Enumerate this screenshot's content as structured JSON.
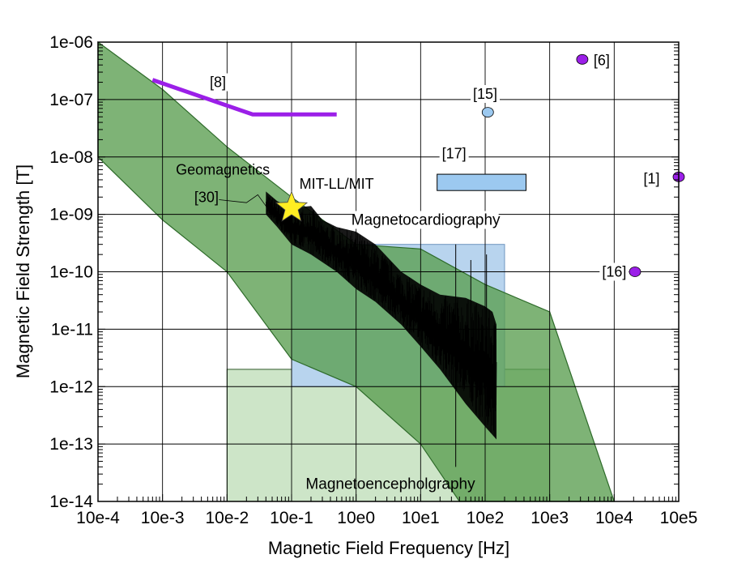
{
  "chart_data": {
    "type": "scatter",
    "xscale": "log",
    "yscale": "log",
    "xlabel": "Magnetic Field Frequency [Hz]",
    "ylabel": "Magnetic Field Strength [T]",
    "xlim": [
      0.0001,
      100000
    ],
    "ylim": [
      1e-14,
      1e-06
    ],
    "grid": true,
    "x_ticks": [
      {
        "value": 0.0001,
        "label": "10e-4"
      },
      {
        "value": 0.001,
        "label": "10e-3"
      },
      {
        "value": 0.01,
        "label": "10e-2"
      },
      {
        "value": 0.1,
        "label": "10e-1"
      },
      {
        "value": 1,
        "label": "10e0"
      },
      {
        "value": 10,
        "label": "10e1"
      },
      {
        "value": 100,
        "label": "10e2"
      },
      {
        "value": 1000,
        "label": "10e3"
      },
      {
        "value": 10000,
        "label": "10e4"
      },
      {
        "value": 100000,
        "label": "10e5"
      }
    ],
    "y_ticks": [
      {
        "value": 1e-14,
        "label": "1e-14"
      },
      {
        "value": 1e-13,
        "label": "1e-13"
      },
      {
        "value": 1e-12,
        "label": "1e-12"
      },
      {
        "value": 1e-11,
        "label": "1e-11"
      },
      {
        "value": 1e-10,
        "label": "1e-10"
      },
      {
        "value": 1e-09,
        "label": "1e-09"
      },
      {
        "value": 1e-08,
        "label": "1e-08"
      },
      {
        "value": 1e-07,
        "label": "1e-07"
      },
      {
        "value": 1e-06,
        "label": "1e-06"
      }
    ],
    "colors": {
      "geomagnetics_fill": "#5a9e50",
      "geomagnetics_stroke": "#2e6b2a",
      "cardio_fill": "#b8d4ee",
      "meg_fill": "#cde5c8",
      "purple": "#9b1fe8",
      "light_blue": "#9cc9f0",
      "star": "#ffee22"
    },
    "regions": [
      {
        "name": "Magnetoencepholgraphy",
        "label": "Magnetoencepholgraphy",
        "x": [
          0.01,
          1000
        ],
        "y": [
          1e-14,
          2e-12
        ],
        "label_at": {
          "x": 3.4,
          "y": 2e-14
        }
      },
      {
        "name": "Magnetocardiography",
        "label": "Magnetocardiography",
        "x": [
          0.1,
          200
        ],
        "y": [
          1e-12,
          3e-10
        ],
        "label_at": {
          "x": 12,
          "y": 8e-10
        }
      },
      {
        "name": "Geomagnetics",
        "label": "Geomagnetics",
        "polygon": [
          [
            0.0001,
            1e-06
          ],
          [
            0.001,
            1.5e-07
          ],
          [
            0.01,
            1.5e-08
          ],
          [
            0.1,
            2e-09
          ],
          [
            1,
            3e-10
          ],
          [
            10,
            2.5e-10
          ],
          [
            100,
            6e-11
          ],
          [
            1000,
            2e-11
          ],
          [
            10000,
            1e-14
          ],
          [
            40,
            1e-14
          ],
          [
            10,
            1e-13
          ],
          [
            1,
            1e-12
          ],
          [
            0.1,
            3e-12
          ],
          [
            0.01,
            1e-10
          ],
          [
            0.001,
            8e-10
          ],
          [
            0.0001,
            1e-08
          ]
        ],
        "label_at": {
          "x": 0.0086,
          "y": 6e-09
        }
      }
    ],
    "series": [
      {
        "name": "[8]",
        "type": "line",
        "points": [
          [
            0.0007,
            2.2e-07
          ],
          [
            0.025,
            5.5e-08
          ],
          [
            0.5,
            5.5e-08
          ]
        ],
        "label": "[8]",
        "label_at": {
          "x": 0.0072,
          "y": 2e-07
        }
      },
      {
        "name": "[15]",
        "type": "point",
        "points": [
          [
            110,
            6e-08
          ]
        ],
        "label": "[15]",
        "label_at": {
          "x": 100,
          "y": 1.25e-07
        }
      },
      {
        "name": "[17]",
        "type": "range",
        "x": [
          18,
          430
        ],
        "y": [
          2.6e-09,
          5e-09
        ],
        "label": "[17]",
        "label_at": {
          "x": 33,
          "y": 1.15e-08
        }
      },
      {
        "name": "[6]",
        "type": "point",
        "points": [
          [
            3200,
            5e-07
          ]
        ],
        "label": "[6]",
        "label_at": {
          "x": 6400,
          "y": 4.8e-07
        }
      },
      {
        "name": "[1]",
        "type": "point",
        "points": [
          [
            100000,
            4.5e-09
          ]
        ],
        "label": "[1]",
        "label_at": {
          "x": 38000,
          "y": 4.2e-09
        }
      },
      {
        "name": "[16]",
        "type": "point",
        "points": [
          [
            21000,
            1e-10
          ]
        ],
        "label": "[16]",
        "label_at": {
          "x": 10000,
          "y": 1e-10
        }
      },
      {
        "name": "MIT-LL/MIT",
        "type": "star",
        "points": [
          [
            0.1,
            1.3e-09
          ]
        ],
        "label": "MIT-LL/MIT",
        "label_at": {
          "x": 0.5,
          "y": 3.4e-09
        }
      },
      {
        "name": "[30]",
        "type": "noise-spectrum",
        "label": "[30]",
        "label_at": {
          "x": 0.0048,
          "y": 2e-09
        },
        "envelope_upper": [
          [
            0.04,
            2.5e-09
          ],
          [
            0.06,
            1.7e-09
          ],
          [
            0.1,
            1.3e-09
          ],
          [
            0.2,
            1.4e-09
          ],
          [
            0.3,
            8e-10
          ],
          [
            0.5,
            6e-10
          ],
          [
            1,
            5e-10
          ],
          [
            2,
            3e-10
          ],
          [
            5,
            1e-10
          ],
          [
            10,
            6e-11
          ],
          [
            20,
            4e-11
          ],
          [
            50,
            3.5e-11
          ],
          [
            100,
            2.5e-11
          ],
          [
            130,
            2e-11
          ],
          [
            150,
            1.2e-11
          ]
        ],
        "envelope_lower": [
          [
            0.04,
            1e-09
          ],
          [
            0.06,
            6e-10
          ],
          [
            0.1,
            3e-10
          ],
          [
            0.2,
            2e-10
          ],
          [
            0.5,
            1e-10
          ],
          [
            1,
            5e-11
          ],
          [
            2,
            3e-11
          ],
          [
            5,
            1.2e-11
          ],
          [
            10,
            5e-12
          ],
          [
            20,
            2e-12
          ],
          [
            50,
            5e-13
          ],
          [
            100,
            2e-13
          ],
          [
            150,
            1.2e-13
          ]
        ]
      }
    ],
    "annotations": [
      {
        "text": "Geomagnetics",
        "at": {
          "x": 0.0086,
          "y": 6e-09
        }
      },
      {
        "text": "[30]",
        "at": {
          "x": 0.0048,
          "y": 2e-09
        }
      }
    ]
  }
}
